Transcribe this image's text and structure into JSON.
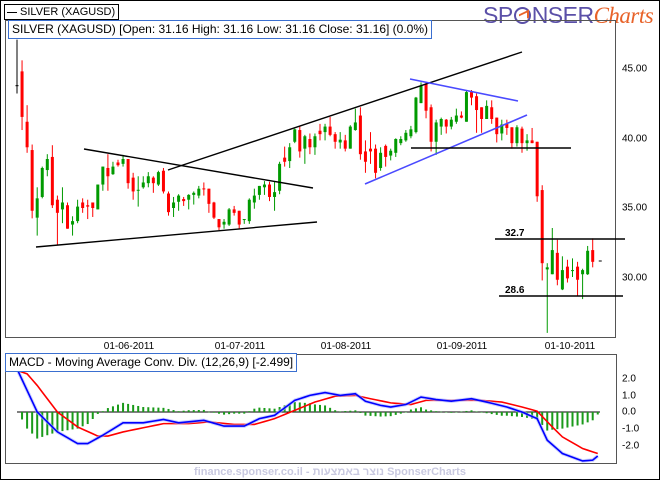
{
  "legend": {
    "label": "SILVER (XAGUSD)"
  },
  "logo": {
    "part1": "SP",
    "part2": "NSER",
    "part3": "Charts"
  },
  "price_title": "SILVER (XAGUSD) [Open: 31.16  High: 31.16  Low: 31.16  Close: 31.16] (0.0%)",
  "macd_title": "MACD - Moving Average Conv. Div. (12,26,9) [-2.499]",
  "footer": "finance.sponser.co.il - נוצר באמצעות SponserCharts",
  "colors": {
    "up": "#009a00",
    "down": "#ff0000",
    "macd": "#0000ff",
    "signal": "#ff0000",
    "histogram": "#1a9a1a",
    "trendline": "#000000",
    "channel": "#4a4aff"
  },
  "chart_data": [
    {
      "type": "candlestick",
      "title": "SILVER (XAGUSD)",
      "ylim": [
        25.7,
        48.7
      ],
      "y_ticks": [
        "45.00",
        "40.00",
        "35.00",
        "30.00"
      ],
      "y_tick_values": [
        45,
        40,
        35,
        30
      ],
      "x_ticks": [
        "01-06-2011",
        "01-07-2011",
        "01-08-2011",
        "01-09-2011",
        "01-10-2011"
      ],
      "x_tick_bar_index": [
        22,
        44,
        65,
        88,
        109
      ],
      "last_close": 31.16,
      "levels": [
        {
          "label": "32.7",
          "value": 32.7
        },
        {
          "label": "28.6",
          "value": 28.6
        }
      ],
      "ohlc": [
        [
          43.9,
          47.2,
          43.3,
          43.9
        ],
        [
          44.9,
          45.7,
          40.65,
          41.6
        ],
        [
          41.25,
          42.45,
          39.0,
          39.4
        ],
        [
          39.2,
          39.6,
          34.25,
          34.8
        ],
        [
          34.3,
          36.5,
          33.0,
          35.7
        ],
        [
          35.8,
          38.0,
          35.7,
          37.9
        ],
        [
          37.75,
          38.9,
          37.3,
          38.55
        ],
        [
          38.7,
          39.55,
          35.0,
          35.2
        ],
        [
          35.6,
          35.9,
          32.3,
          34.65
        ],
        [
          34.9,
          36.5,
          33.9,
          35.4
        ],
        [
          35.2,
          35.4,
          33.5,
          33.5
        ],
        [
          33.8,
          34.4,
          33.0,
          34.05
        ],
        [
          34.05,
          35.6,
          33.9,
          35.1
        ],
        [
          35.4,
          35.7,
          34.65,
          35.0
        ],
        [
          35.2,
          35.6,
          34.2,
          35.1
        ],
        [
          35.4,
          35.4,
          34.35,
          35.0
        ],
        [
          34.9,
          36.7,
          34.9,
          36.7
        ],
        [
          36.7,
          38.0,
          36.25,
          38.0
        ],
        [
          37.9,
          38.9,
          36.25,
          37.3
        ],
        [
          37.45,
          38.35,
          37.4,
          38.0
        ],
        [
          38.3,
          38.5,
          38.0,
          38.1
        ],
        [
          38.2,
          38.85,
          38.0,
          38.55
        ],
        [
          38.55,
          38.55,
          36.4,
          36.8
        ],
        [
          37.2,
          37.55,
          35.6,
          36.2
        ],
        [
          36.3,
          37.3,
          35.1,
          36.32
        ],
        [
          36.5,
          37.3,
          36.4,
          36.85
        ],
        [
          36.8,
          37.6,
          36.5,
          37.3
        ],
        [
          37.2,
          37.3,
          36.1,
          36.8
        ],
        [
          36.7,
          37.7,
          36.6,
          37.6
        ],
        [
          37.7,
          37.9,
          36.05,
          36.2
        ],
        [
          36.05,
          36.2,
          34.45,
          34.7
        ],
        [
          35.0,
          35.8,
          34.35,
          35.4
        ],
        [
          35.45,
          36.0,
          34.8,
          35.9
        ],
        [
          35.65,
          35.8,
          35.15,
          35.5
        ],
        [
          35.6,
          36.0,
          34.9,
          35.95
        ],
        [
          35.95,
          36.2,
          35.25,
          36.1
        ],
        [
          35.9,
          36.6,
          35.7,
          36.4
        ],
        [
          36.42,
          36.85,
          35.9,
          36.4
        ],
        [
          36.4,
          36.4,
          34.65,
          35.3
        ],
        [
          35.4,
          35.45,
          34.2,
          34.3
        ],
        [
          34.2,
          34.2,
          33.4,
          33.6
        ],
        [
          33.8,
          34.2,
          33.5,
          34.0
        ],
        [
          33.8,
          35.0,
          33.7,
          34.9
        ],
        [
          34.9,
          35.15,
          34.45,
          34.65
        ],
        [
          34.8,
          34.8,
          33.45,
          33.8
        ],
        [
          34.18,
          34.2,
          33.85,
          34.2
        ],
        [
          34.05,
          35.7,
          33.85,
          35.6
        ],
        [
          35.4,
          36.4,
          34.95,
          35.9
        ],
        [
          35.95,
          36.6,
          35.6,
          36.6
        ],
        [
          36.5,
          36.95,
          35.95,
          36.7
        ],
        [
          36.7,
          36.9,
          35.5,
          35.8
        ],
        [
          35.8,
          36.9,
          34.8,
          36.15
        ],
        [
          36.25,
          38.35,
          36.0,
          38.2
        ],
        [
          38.65,
          39.45,
          38.0,
          38.35
        ],
        [
          38.4,
          39.7,
          37.9,
          39.4
        ],
        [
          39.8,
          40.75,
          39.7,
          40.7
        ],
        [
          40.65,
          40.9,
          38.65,
          39.1
        ],
        [
          39.3,
          40.3,
          38.2,
          40.2
        ],
        [
          40.0,
          40.4,
          38.9,
          39.4
        ],
        [
          39.4,
          40.4,
          38.85,
          40.2
        ],
        [
          40.6,
          41.1,
          39.9,
          40.35
        ],
        [
          40.5,
          41.1,
          39.9,
          40.9
        ],
        [
          40.9,
          41.6,
          40.2,
          40.3
        ],
        [
          40.35,
          40.5,
          39.3,
          39.8
        ],
        [
          39.75,
          40.5,
          39.3,
          39.95
        ],
        [
          39.9,
          40.3,
          39.1,
          39.3
        ],
        [
          39.3,
          41.0,
          39.3,
          40.9
        ],
        [
          40.65,
          42.2,
          40.6,
          41.2
        ],
        [
          41.7,
          42.3,
          38.5,
          38.9
        ],
        [
          39.1,
          39.9,
          37.55,
          38.35
        ],
        [
          39.3,
          40.5,
          38.2,
          39.1
        ],
        [
          39.3,
          39.6,
          37.15,
          37.55
        ],
        [
          37.9,
          39.4,
          37.7,
          39.0
        ],
        [
          39.5,
          39.6,
          38.0,
          38.7
        ],
        [
          38.8,
          39.3,
          38.45,
          39.15
        ],
        [
          39.0,
          40.05,
          38.7,
          40.0
        ],
        [
          39.7,
          40.2,
          39.55,
          40.0
        ],
        [
          39.9,
          40.65,
          39.8,
          40.45
        ],
        [
          40.2,
          40.95,
          40.05,
          40.7
        ],
        [
          40.5,
          43.05,
          40.4,
          43.0
        ],
        [
          42.6,
          44.1,
          42.6,
          43.85
        ],
        [
          44.0,
          44.15,
          41.5,
          42.05
        ],
        [
          42.3,
          42.5,
          39.1,
          39.8
        ],
        [
          39.8,
          41.4,
          38.85,
          41.2
        ],
        [
          40.9,
          41.55,
          40.3,
          41.45
        ],
        [
          41.4,
          41.45,
          40.4,
          40.9
        ],
        [
          40.9,
          41.6,
          40.7,
          41.4
        ],
        [
          41.25,
          42.2,
          41.1,
          41.7
        ],
        [
          41.7,
          42.0,
          41.5,
          41.55
        ],
        [
          41.25,
          43.55,
          41.25,
          43.4
        ],
        [
          43.4,
          43.55,
          42.45,
          43.0
        ],
        [
          43.1,
          43.3,
          40.45,
          42.1
        ],
        [
          42.3,
          42.3,
          40.45,
          41.45
        ],
        [
          41.45,
          42.8,
          41.45,
          42.4
        ],
        [
          42.3,
          42.8,
          41.1,
          41.45
        ],
        [
          41.55,
          41.55,
          39.75,
          40.35
        ],
        [
          40.4,
          41.4,
          39.9,
          41.05
        ],
        [
          41.1,
          41.4,
          40.3,
          40.8
        ],
        [
          40.85,
          40.85,
          39.3,
          39.7
        ],
        [
          39.7,
          41.0,
          39.45,
          40.85
        ],
        [
          40.75,
          40.9,
          39.0,
          39.7
        ],
        [
          39.7,
          40.35,
          39.15,
          39.9
        ],
        [
          39.9,
          40.8,
          39.7,
          39.7
        ],
        [
          39.8,
          39.8,
          35.45,
          35.85
        ],
        [
          36.3,
          36.65,
          29.75,
          31.0
        ],
        [
          30.55,
          31.0,
          25.95,
          30.7
        ],
        [
          30.2,
          33.55,
          30.2,
          31.95
        ],
        [
          31.75,
          32.7,
          29.4,
          29.8
        ],
        [
          29.1,
          31.5,
          29.05,
          30.5
        ],
        [
          30.75,
          31.25,
          29.6,
          29.9
        ],
        [
          30.48,
          31.35,
          30.0,
          30.5
        ],
        [
          30.75,
          31.1,
          28.6,
          29.8
        ],
        [
          30.2,
          30.6,
          28.4,
          30.5
        ],
        [
          30.2,
          32.25,
          30.15,
          31.9
        ],
        [
          31.95,
          32.8,
          30.7,
          31.1
        ]
      ]
    },
    {
      "type": "line",
      "title": "MACD - Moving Average Conv. Div. (12,26,9)",
      "last_value": -2.499,
      "ylim": [
        -3.2,
        3.2
      ],
      "y_ticks": [
        "2.0",
        "1.0",
        "0.0",
        "-1.0",
        "-2.0"
      ],
      "y_tick_values": [
        2,
        1,
        0,
        -1,
        -2
      ],
      "series": [
        {
          "name": "MACD",
          "points": [
            [
              0,
              2.6
            ],
            [
              4,
              0.0
            ],
            [
              8,
              -1.2
            ],
            [
              12,
              -1.9
            ],
            [
              14,
              -1.9
            ],
            [
              17,
              -1.4
            ],
            [
              21,
              -0.65
            ],
            [
              25,
              -0.65
            ],
            [
              29,
              -0.45
            ],
            [
              32,
              -0.65
            ],
            [
              37,
              -0.5
            ],
            [
              41,
              -0.85
            ],
            [
              45,
              -0.85
            ],
            [
              48,
              -0.4
            ],
            [
              51,
              -0.2
            ],
            [
              55,
              0.7
            ],
            [
              58,
              1.0
            ],
            [
              61,
              1.17
            ],
            [
              64,
              1.0
            ],
            [
              67,
              1.1
            ],
            [
              69,
              0.65
            ],
            [
              72,
              0.4
            ],
            [
              74,
              0.3
            ],
            [
              77,
              0.45
            ],
            [
              80,
              0.9
            ],
            [
              83,
              0.75
            ],
            [
              86,
              0.65
            ],
            [
              90,
              0.8
            ],
            [
              93,
              0.6
            ],
            [
              97,
              0.3
            ],
            [
              100,
              0.0
            ],
            [
              103,
              -0.4
            ],
            [
              105,
              -1.7
            ],
            [
              108,
              -2.5
            ],
            [
              112,
              -2.95
            ],
            [
              114,
              -2.9
            ],
            [
              115,
              -2.65
            ]
          ]
        },
        {
          "name": "Signal",
          "points": [
            [
              0,
              2.5
            ],
            [
              2,
              2.3
            ],
            [
              4,
              1.6
            ],
            [
              8,
              0.0
            ],
            [
              12,
              -0.9
            ],
            [
              16,
              -1.45
            ],
            [
              18,
              -1.45
            ],
            [
              21,
              -1.2
            ],
            [
              25,
              -0.95
            ],
            [
              29,
              -0.7
            ],
            [
              34,
              -0.7
            ],
            [
              38,
              -0.6
            ],
            [
              43,
              -0.75
            ],
            [
              47,
              -0.75
            ],
            [
              51,
              -0.4
            ],
            [
              55,
              0.1
            ],
            [
              59,
              0.6
            ],
            [
              63,
              0.95
            ],
            [
              67,
              1.0
            ],
            [
              70,
              0.8
            ],
            [
              74,
              0.55
            ],
            [
              78,
              0.45
            ],
            [
              81,
              0.7
            ],
            [
              86,
              0.7
            ],
            [
              92,
              0.7
            ],
            [
              96,
              0.6
            ],
            [
              100,
              0.3
            ],
            [
              103,
              0.05
            ],
            [
              106,
              -0.9
            ],
            [
              108,
              -1.5
            ],
            [
              112,
              -2.2
            ],
            [
              115,
              -2.5
            ]
          ]
        }
      ],
      "histogram": "MACD - Signal"
    }
  ]
}
